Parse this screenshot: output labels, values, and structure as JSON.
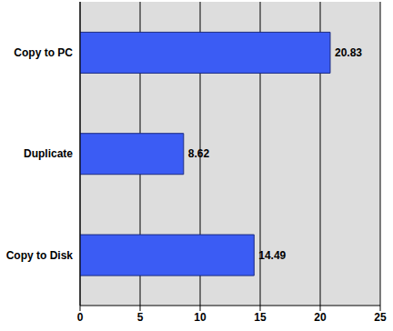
{
  "chart_data": {
    "type": "bar",
    "orientation": "horizontal",
    "categories": [
      "Copy to PC",
      "Duplicate",
      "Copy to Disk"
    ],
    "values": [
      20.83,
      8.62,
      14.49
    ],
    "color": "#3b5cf4",
    "xlim": [
      0,
      25
    ],
    "xticks": [
      0,
      5,
      10,
      15,
      20,
      25
    ],
    "grid": true,
    "data_labels": true
  }
}
